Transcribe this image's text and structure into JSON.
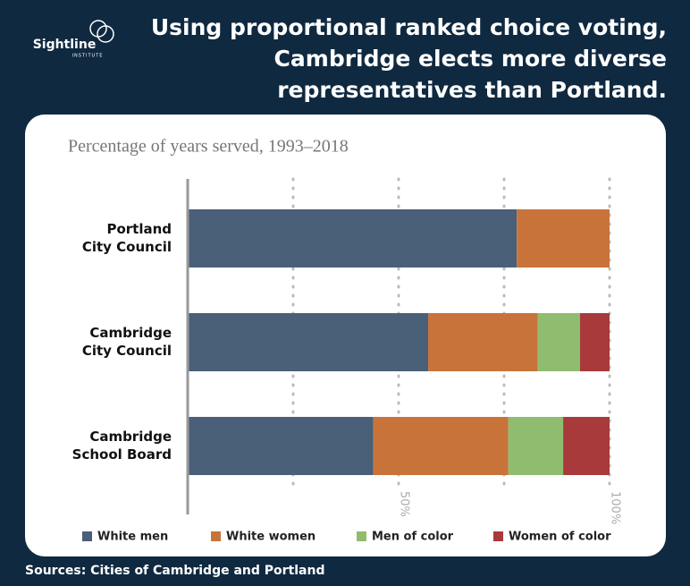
{
  "logo": {
    "name": "Sightline",
    "sub": "INSTITUTE"
  },
  "title": [
    "Using proportional ranked choice voting,",
    "Cambridge elects more diverse",
    "representatives than Portland."
  ],
  "source": "Sources: Cities of Cambridge and Portland",
  "chart_data": {
    "type": "stacked-barh",
    "subtitle": "Percentage of years served, 1993–2018",
    "categories": [
      [
        "Portland",
        "City Council"
      ],
      [
        "Cambridge",
        "City Council"
      ],
      [
        "Cambridge",
        "School Board"
      ]
    ],
    "series": [
      {
        "name": "White men",
        "color": "#4a5f78",
        "values": [
          78,
          57,
          44
        ]
      },
      {
        "name": "White women",
        "color": "#c8733a",
        "values": [
          22,
          26,
          32
        ]
      },
      {
        "name": "Men of color",
        "color": "#8fbc6e",
        "values": [
          0,
          10,
          13
        ]
      },
      {
        "name": "Women of color",
        "color": "#a83a3c",
        "values": [
          0,
          7,
          11
        ]
      }
    ],
    "xlim": [
      0,
      100
    ],
    "xticks": [
      {
        "value": 50,
        "label": "50%"
      },
      {
        "value": 100,
        "label": "100%"
      }
    ],
    "minor_xticks": [
      25,
      75
    ],
    "grid": true,
    "legend": "bottom"
  }
}
